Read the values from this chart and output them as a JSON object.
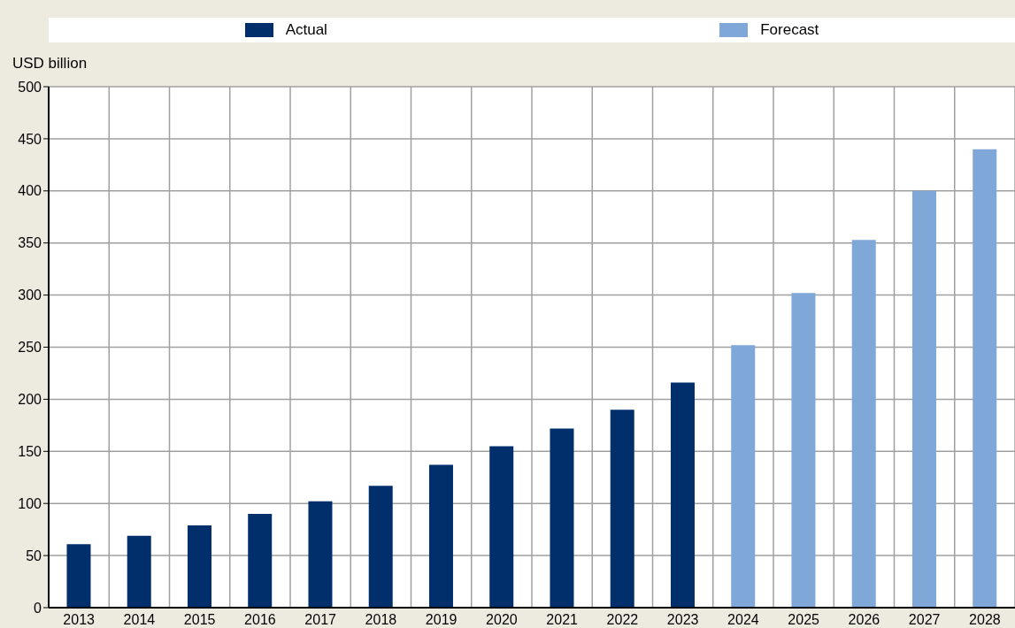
{
  "chart_data": {
    "type": "bar",
    "ylabel": "USD billion",
    "categories": [
      "2013",
      "2014",
      "2015",
      "2016",
      "2017",
      "2018",
      "2019",
      "2020",
      "2021",
      "2022",
      "2023",
      "2024",
      "2025",
      "2026",
      "2027",
      "2028"
    ],
    "series": [
      {
        "name": "Actual",
        "color": "#002f6c",
        "values": [
          61,
          69,
          79,
          90,
          102,
          117,
          137,
          155,
          172,
          190,
          216,
          null,
          null,
          null,
          null,
          null
        ]
      },
      {
        "name": "Forecast",
        "color": "#7fa8d8",
        "values": [
          null,
          null,
          null,
          null,
          null,
          null,
          null,
          null,
          null,
          null,
          null,
          252,
          302,
          353,
          400,
          440
        ]
      }
    ],
    "ylim": [
      0,
      500
    ],
    "yticks": [
      0,
      50,
      100,
      150,
      200,
      250,
      300,
      350,
      400,
      450,
      500
    ],
    "grid": true,
    "legend": "top"
  }
}
